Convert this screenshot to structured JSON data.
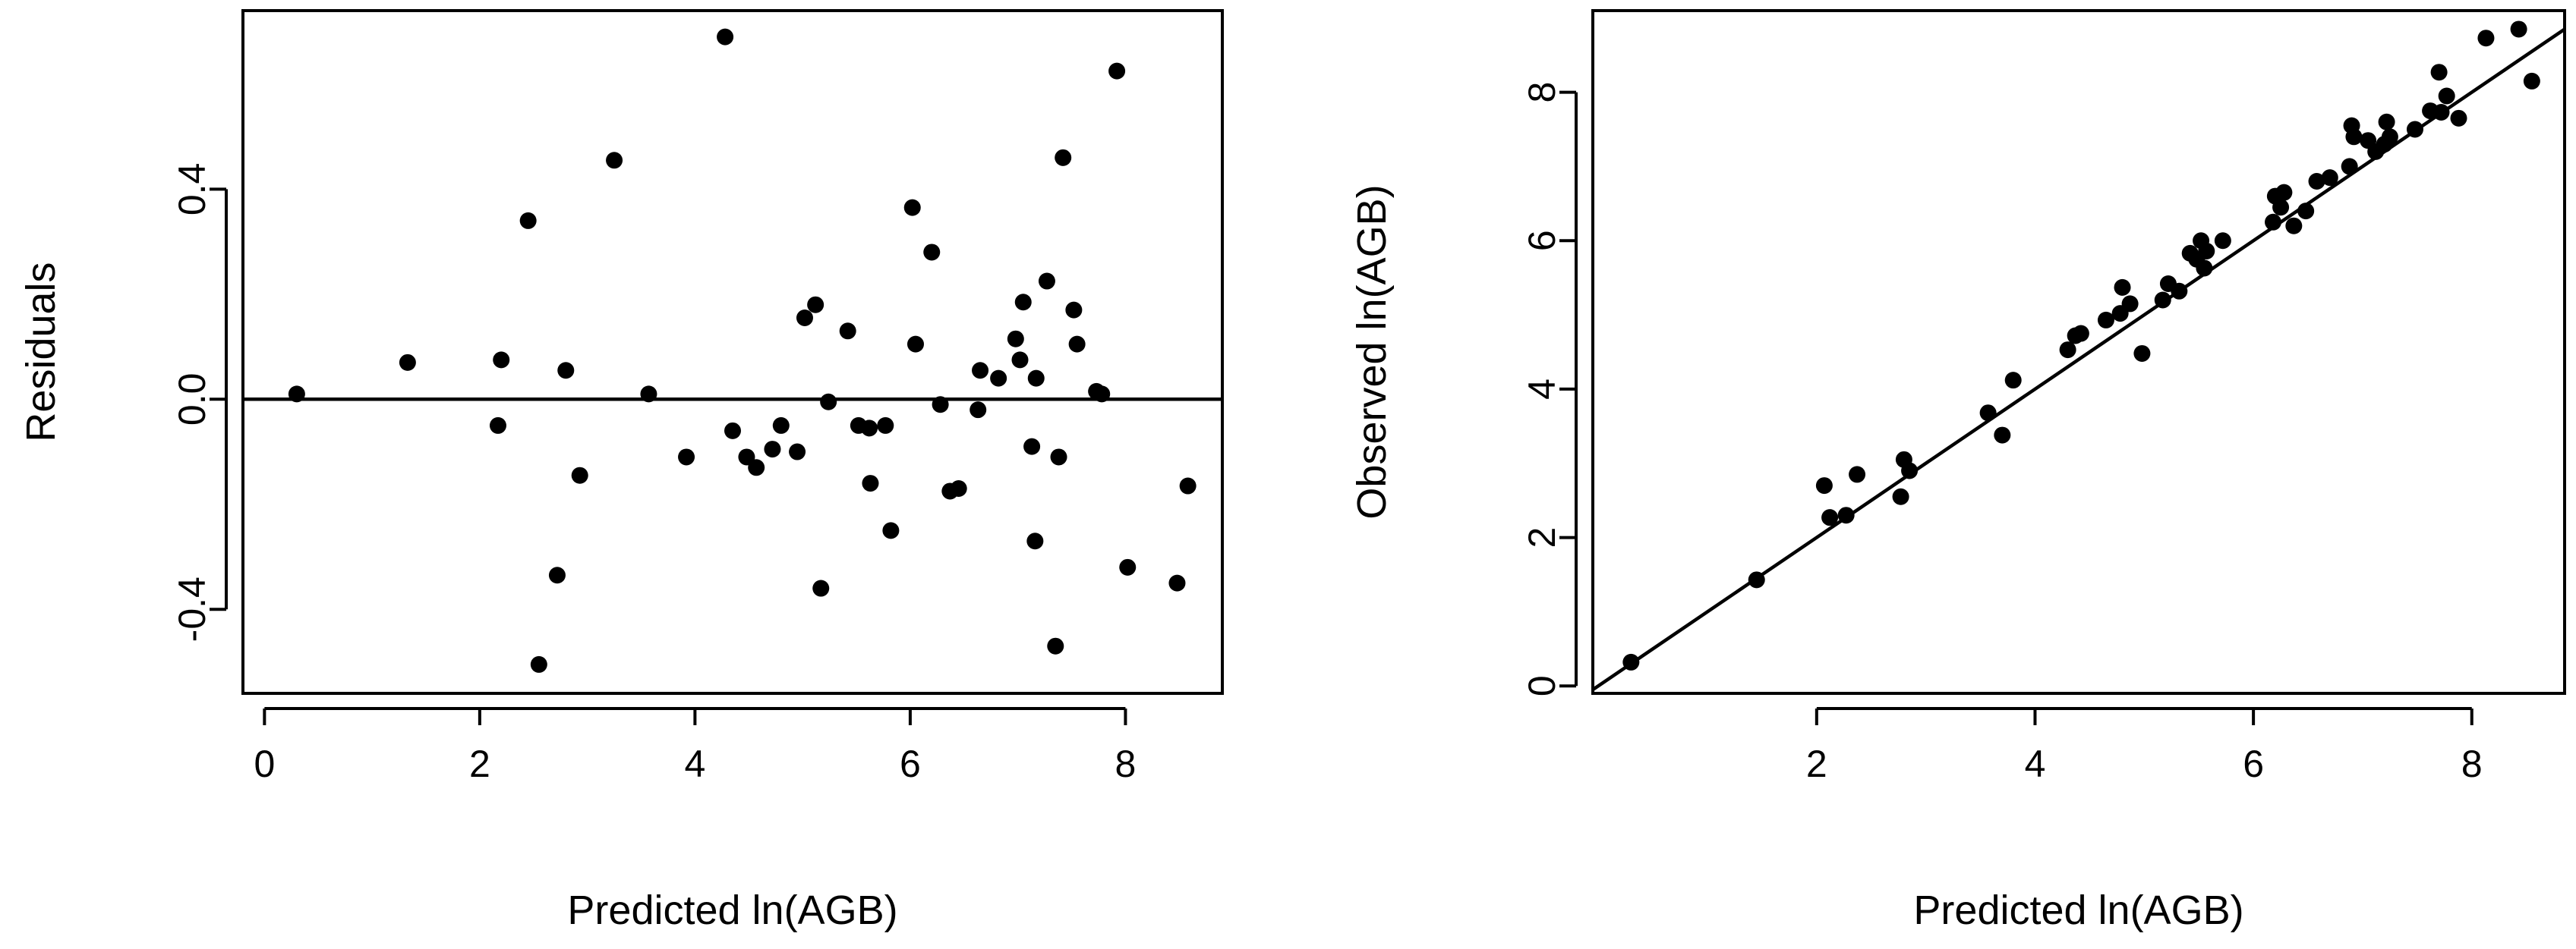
{
  "colors": {
    "points": "#000000",
    "lines": "#000000",
    "background": "#ffffff"
  },
  "chart_data": [
    {
      "type": "scatter",
      "title": "",
      "xlabel": "Predicted ln(AGB)",
      "ylabel": "Residuals",
      "xlim": [
        -0.2,
        8.9
      ],
      "ylim": [
        -0.56,
        0.74
      ],
      "xticks": [
        0,
        2,
        4,
        6,
        8
      ],
      "xtick_labels": [
        "0",
        "2",
        "4",
        "6",
        "8"
      ],
      "yticks": [
        -0.4,
        0.0,
        0.4
      ],
      "ytick_labels": [
        "-0.4",
        "0.0",
        "0.4"
      ],
      "grid": false,
      "reference_line": {
        "type": "horizontal",
        "y": 0
      },
      "points": [
        {
          "x": 0.3,
          "y": 0.01
        },
        {
          "x": 1.33,
          "y": 0.07
        },
        {
          "x": 2.17,
          "y": -0.05
        },
        {
          "x": 2.2,
          "y": 0.075
        },
        {
          "x": 2.45,
          "y": 0.34
        },
        {
          "x": 2.55,
          "y": -0.505
        },
        {
          "x": 2.72,
          "y": -0.335
        },
        {
          "x": 2.8,
          "y": 0.055
        },
        {
          "x": 2.93,
          "y": -0.145
        },
        {
          "x": 3.25,
          "y": 0.455
        },
        {
          "x": 3.57,
          "y": 0.01
        },
        {
          "x": 3.92,
          "y": -0.11
        },
        {
          "x": 4.28,
          "y": 0.69
        },
        {
          "x": 4.35,
          "y": -0.06
        },
        {
          "x": 4.48,
          "y": -0.11
        },
        {
          "x": 4.57,
          "y": -0.13
        },
        {
          "x": 4.72,
          "y": -0.095
        },
        {
          "x": 4.8,
          "y": -0.05
        },
        {
          "x": 4.95,
          "y": -0.1
        },
        {
          "x": 5.02,
          "y": 0.155
        },
        {
          "x": 5.12,
          "y": 0.18
        },
        {
          "x": 5.17,
          "y": -0.36
        },
        {
          "x": 5.24,
          "y": -0.005
        },
        {
          "x": 5.42,
          "y": 0.13
        },
        {
          "x": 5.52,
          "y": -0.05
        },
        {
          "x": 5.62,
          "y": -0.055
        },
        {
          "x": 5.63,
          "y": -0.16
        },
        {
          "x": 5.77,
          "y": -0.05
        },
        {
          "x": 5.82,
          "y": -0.25
        },
        {
          "x": 6.02,
          "y": 0.365
        },
        {
          "x": 6.05,
          "y": 0.105
        },
        {
          "x": 6.2,
          "y": 0.28
        },
        {
          "x": 6.28,
          "y": -0.01
        },
        {
          "x": 6.37,
          "y": -0.175
        },
        {
          "x": 6.45,
          "y": -0.17
        },
        {
          "x": 6.63,
          "y": -0.02
        },
        {
          "x": 6.65,
          "y": 0.055
        },
        {
          "x": 6.82,
          "y": 0.04
        },
        {
          "x": 6.98,
          "y": 0.115
        },
        {
          "x": 7.02,
          "y": 0.075
        },
        {
          "x": 7.05,
          "y": 0.185
        },
        {
          "x": 7.13,
          "y": -0.09
        },
        {
          "x": 7.16,
          "y": -0.27
        },
        {
          "x": 7.17,
          "y": 0.04
        },
        {
          "x": 7.27,
          "y": 0.225
        },
        {
          "x": 7.35,
          "y": -0.47
        },
        {
          "x": 7.38,
          "y": -0.11
        },
        {
          "x": 7.42,
          "y": 0.46
        },
        {
          "x": 7.52,
          "y": 0.17
        },
        {
          "x": 7.55,
          "y": 0.105
        },
        {
          "x": 7.73,
          "y": 0.015
        },
        {
          "x": 7.78,
          "y": 0.01
        },
        {
          "x": 7.92,
          "y": 0.625
        },
        {
          "x": 8.02,
          "y": -0.32
        },
        {
          "x": 8.48,
          "y": -0.35
        },
        {
          "x": 8.58,
          "y": -0.165
        }
      ]
    },
    {
      "type": "scatter",
      "title": "",
      "xlabel": "Predicted ln(AGB)",
      "ylabel": "Observed ln(AGB)",
      "xlim": [
        -0.05,
        8.85
      ],
      "ylim": [
        -0.1,
        9.1
      ],
      "xticks": [
        2,
        4,
        6,
        8
      ],
      "xtick_labels": [
        "2",
        "4",
        "6",
        "8"
      ],
      "yticks": [
        0,
        2,
        4,
        6,
        8
      ],
      "ytick_labels": [
        "0",
        "2",
        "4",
        "6",
        "8"
      ],
      "grid": false,
      "reference_line": {
        "type": "identity",
        "slope": 1,
        "intercept": 0
      },
      "points": [
        {
          "x": 0.3,
          "y": 0.32
        },
        {
          "x": 1.45,
          "y": 1.43
        },
        {
          "x": 2.07,
          "y": 2.7
        },
        {
          "x": 2.12,
          "y": 2.27
        },
        {
          "x": 2.27,
          "y": 2.3
        },
        {
          "x": 2.37,
          "y": 2.85
        },
        {
          "x": 2.77,
          "y": 2.55
        },
        {
          "x": 2.8,
          "y": 3.05
        },
        {
          "x": 2.85,
          "y": 2.9
        },
        {
          "x": 3.57,
          "y": 3.68
        },
        {
          "x": 3.7,
          "y": 3.38
        },
        {
          "x": 3.8,
          "y": 4.12
        },
        {
          "x": 4.3,
          "y": 4.53
        },
        {
          "x": 4.37,
          "y": 4.72
        },
        {
          "x": 4.42,
          "y": 4.75
        },
        {
          "x": 4.65,
          "y": 4.93
        },
        {
          "x": 4.78,
          "y": 5.02
        },
        {
          "x": 4.8,
          "y": 5.37
        },
        {
          "x": 4.87,
          "y": 5.15
        },
        {
          "x": 4.98,
          "y": 4.48
        },
        {
          "x": 5.17,
          "y": 5.2
        },
        {
          "x": 5.22,
          "y": 5.42
        },
        {
          "x": 5.32,
          "y": 5.32
        },
        {
          "x": 5.42,
          "y": 5.83
        },
        {
          "x": 5.48,
          "y": 5.75
        },
        {
          "x": 5.52,
          "y": 6.0
        },
        {
          "x": 5.55,
          "y": 5.63
        },
        {
          "x": 5.57,
          "y": 5.86
        },
        {
          "x": 5.72,
          "y": 6.0
        },
        {
          "x": 6.18,
          "y": 6.25
        },
        {
          "x": 6.2,
          "y": 6.6
        },
        {
          "x": 6.25,
          "y": 6.45
        },
        {
          "x": 6.28,
          "y": 6.65
        },
        {
          "x": 6.37,
          "y": 6.2
        },
        {
          "x": 6.48,
          "y": 6.4
        },
        {
          "x": 6.58,
          "y": 6.8
        },
        {
          "x": 6.7,
          "y": 6.85
        },
        {
          "x": 6.88,
          "y": 7.0
        },
        {
          "x": 6.9,
          "y": 7.55
        },
        {
          "x": 6.92,
          "y": 7.4
        },
        {
          "x": 7.05,
          "y": 7.35
        },
        {
          "x": 7.12,
          "y": 7.2
        },
        {
          "x": 7.2,
          "y": 7.3
        },
        {
          "x": 7.22,
          "y": 7.6
        },
        {
          "x": 7.25,
          "y": 7.4
        },
        {
          "x": 7.48,
          "y": 7.5
        },
        {
          "x": 7.62,
          "y": 7.75
        },
        {
          "x": 7.7,
          "y": 8.27
        },
        {
          "x": 7.72,
          "y": 7.73
        },
        {
          "x": 7.77,
          "y": 7.95
        },
        {
          "x": 7.88,
          "y": 7.65
        },
        {
          "x": 8.13,
          "y": 8.73
        },
        {
          "x": 8.43,
          "y": 8.85
        },
        {
          "x": 8.55,
          "y": 8.15
        }
      ]
    }
  ]
}
